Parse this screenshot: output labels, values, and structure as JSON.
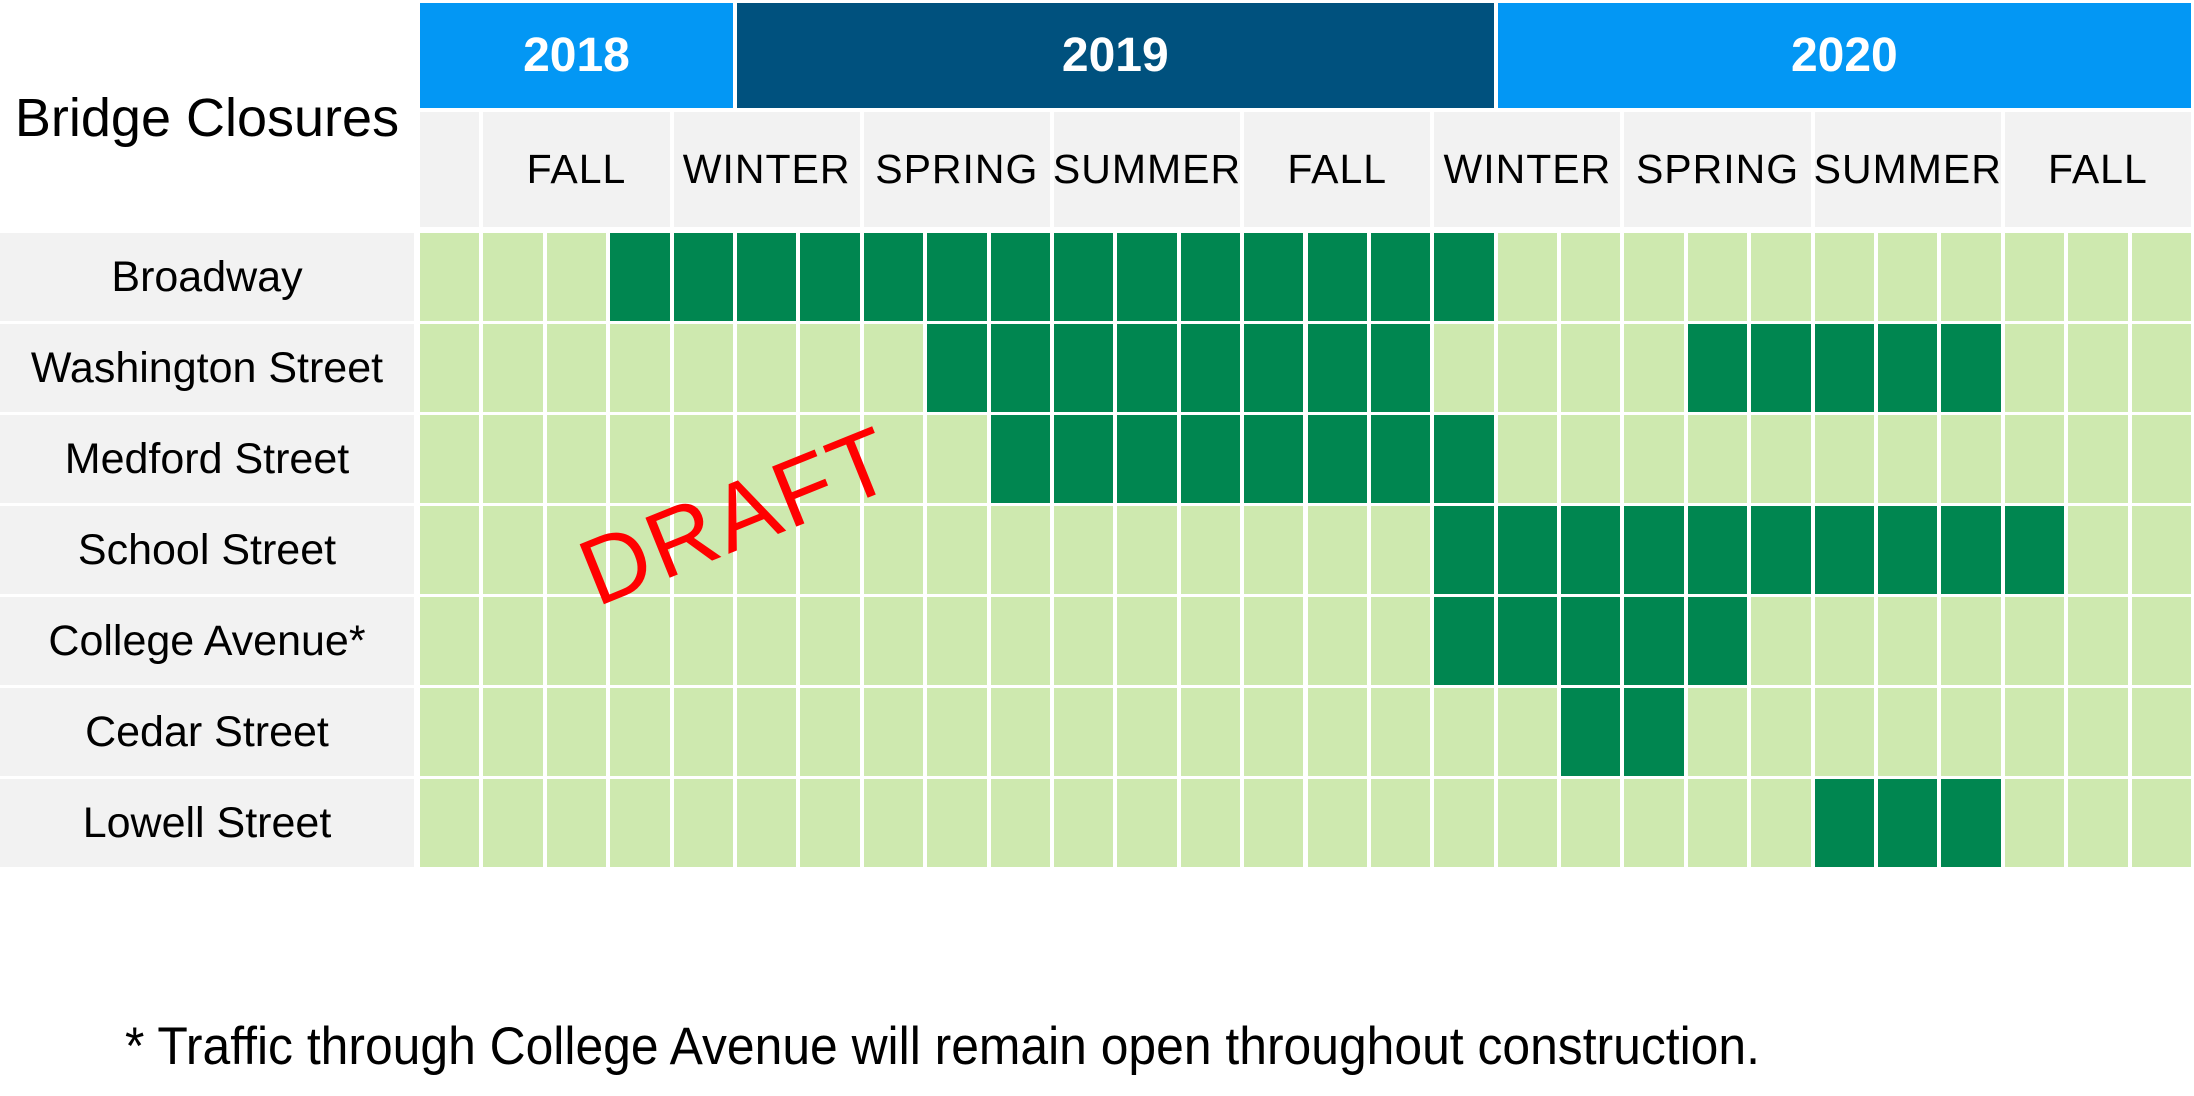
{
  "title": "Bridge Closures",
  "watermark": "DRAFT",
  "footnote": "* Traffic through College Avenue will remain open throughout construction.",
  "colors": {
    "light_blue": "#0397F4",
    "dark_blue": "#00517E",
    "header_gray": "#F2F2F2",
    "open_green": "#CEE9AF",
    "closed_green": "#008650",
    "gridline_white": "#FFFFFF",
    "watermark_red": "#FF0000",
    "year_text": "#FFFFFF",
    "body_text": "#000000"
  },
  "chart_data": {
    "type": "heatmap",
    "subtype": "gantt-closure-schedule",
    "unit": "month",
    "columns": 28,
    "months": [
      "Aug 2018",
      "Sep 2018",
      "Oct 2018",
      "Nov 2018",
      "Dec 2018",
      "Jan 2019",
      "Feb 2019",
      "Mar 2019",
      "Apr 2019",
      "May 2019",
      "Jun 2019",
      "Jul 2019",
      "Aug 2019",
      "Sep 2019",
      "Oct 2019",
      "Nov 2019",
      "Dec 2019",
      "Jan 2020",
      "Feb 2020",
      "Mar 2020",
      "Apr 2020",
      "May 2020",
      "Jun 2020",
      "Jul 2020",
      "Aug 2020",
      "Sep 2020",
      "Oct 2020",
      "Nov 2020"
    ],
    "year_bands": [
      {
        "label": "2018",
        "start": 0,
        "span": 5,
        "shade": "light_blue"
      },
      {
        "label": "2019",
        "start": 5,
        "span": 12,
        "shade": "dark_blue"
      },
      {
        "label": "2020",
        "start": 17,
        "span": 11,
        "shade": "light_blue"
      }
    ],
    "season_cells": [
      {
        "label": "",
        "start": 0,
        "span": 1
      },
      {
        "label": "FALL",
        "start": 1,
        "span": 3
      },
      {
        "label": "WINTER",
        "start": 4,
        "span": 3
      },
      {
        "label": "SPRING",
        "start": 7,
        "span": 3
      },
      {
        "label": "SUMMER",
        "start": 10,
        "span": 3
      },
      {
        "label": "FALL",
        "start": 13,
        "span": 3
      },
      {
        "label": "WINTER",
        "start": 16,
        "span": 3
      },
      {
        "label": "SPRING",
        "start": 19,
        "span": 3
      },
      {
        "label": "SUMMER",
        "start": 22,
        "span": 3
      },
      {
        "label": "FALL",
        "start": 25,
        "span": 3
      }
    ],
    "rows": [
      {
        "label": "Broadway",
        "closed_ranges": [
          [
            3,
            16
          ]
        ],
        "closed_periods": [
          "Nov 2018 - Dec 2019"
        ]
      },
      {
        "label": "Washington Street",
        "closed_ranges": [
          [
            8,
            15
          ],
          [
            20,
            24
          ]
        ],
        "closed_periods": [
          "Apr 2019 - Nov 2019",
          "Apr 2020 - Aug 2020"
        ]
      },
      {
        "label": "Medford Street",
        "closed_ranges": [
          [
            9,
            16
          ]
        ],
        "closed_periods": [
          "May 2019 - Dec 2019"
        ]
      },
      {
        "label": "School Street",
        "closed_ranges": [
          [
            16,
            25
          ]
        ],
        "closed_periods": [
          "Dec 2019 - Sep 2020"
        ]
      },
      {
        "label": "College Avenue*",
        "closed_ranges": [
          [
            16,
            20
          ]
        ],
        "closed_periods": [
          "Dec 2019 - Apr 2020"
        ]
      },
      {
        "label": "Cedar Street",
        "closed_ranges": [
          [
            18,
            19
          ]
        ],
        "closed_periods": [
          "Feb 2020 - Mar 2020"
        ]
      },
      {
        "label": "Lowell Street",
        "closed_ranges": [
          [
            22,
            24
          ]
        ],
        "closed_periods": [
          "Jun 2020 - Aug 2020"
        ]
      }
    ]
  }
}
